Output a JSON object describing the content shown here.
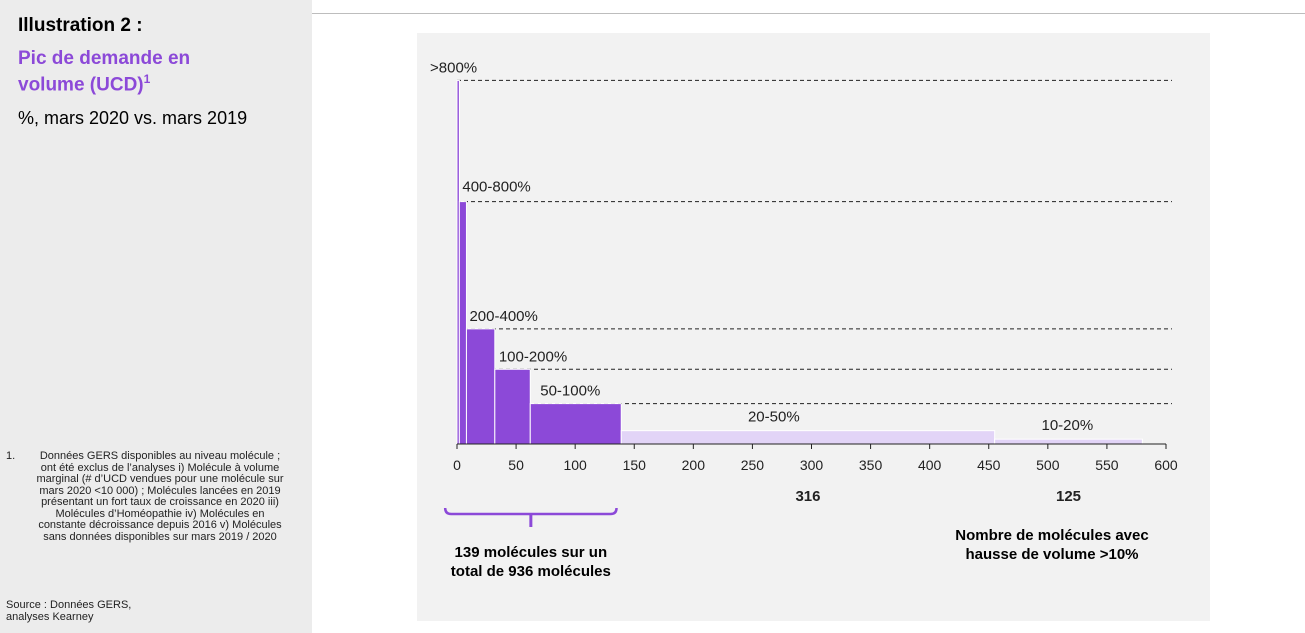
{
  "sidebar": {
    "title": "Illustration 2 :",
    "subtitle": "Pic de demande en volume (UCD)",
    "subtitle_sup": "1",
    "unit": "%, mars 2020 vs. mars 2019",
    "footnote_number": "1.",
    "footnote_text": "Données GERS disponibles au niveau molécule ; ont été exclus de l’analyses i) Molécule à volume marginal (# d’UCD vendues pour une molécule sur mars 2020 <10 000) ; Molécules lancées en 2019 présentant un fort taux de croissance en 2020 iii) Molécules d’Homéopathie iv) Molécules en constante décroissance depuis 2016 v) Molécules sans données disponibles sur mars 2019 / 2020",
    "source": "Source : Données GERS, analyses Kearney"
  },
  "chart_data": {
    "type": "bar",
    "categories": [
      ">800%",
      "400-800%",
      "200-400%",
      "100-200%",
      "50-100%",
      "20-50%",
      "10-20%"
    ],
    "bin_start": [
      0,
      2,
      8,
      32,
      62,
      139,
      455
    ],
    "bin_end": [
      2,
      8,
      32,
      62,
      139,
      455,
      580
    ],
    "heights": [
      9.0,
      6.0,
      2.85,
      1.85,
      1.0,
      0.33,
      0.12
    ],
    "colors": [
      "#8c49d8",
      "#8c49d8",
      "#8c49d8",
      "#8c49d8",
      "#8c49d8",
      "#e2d4f7",
      "#e2d4f7"
    ],
    "xlim": [
      0,
      600
    ],
    "xticks": [
      0,
      50,
      100,
      150,
      200,
      250,
      300,
      350,
      400,
      450,
      500,
      550,
      600
    ],
    "grid": "dashed reference lines at bin heights",
    "counts": [
      {
        "text": "316",
        "x": 297
      },
      {
        "text": "125",
        "x": 517.5
      }
    ],
    "axis_title": "Nombre de molécules avec hausse de volume >10%",
    "bracket_range": [
      -10,
      135
    ],
    "bracket_text": "139 molécules sur un total de 936 molécules"
  }
}
